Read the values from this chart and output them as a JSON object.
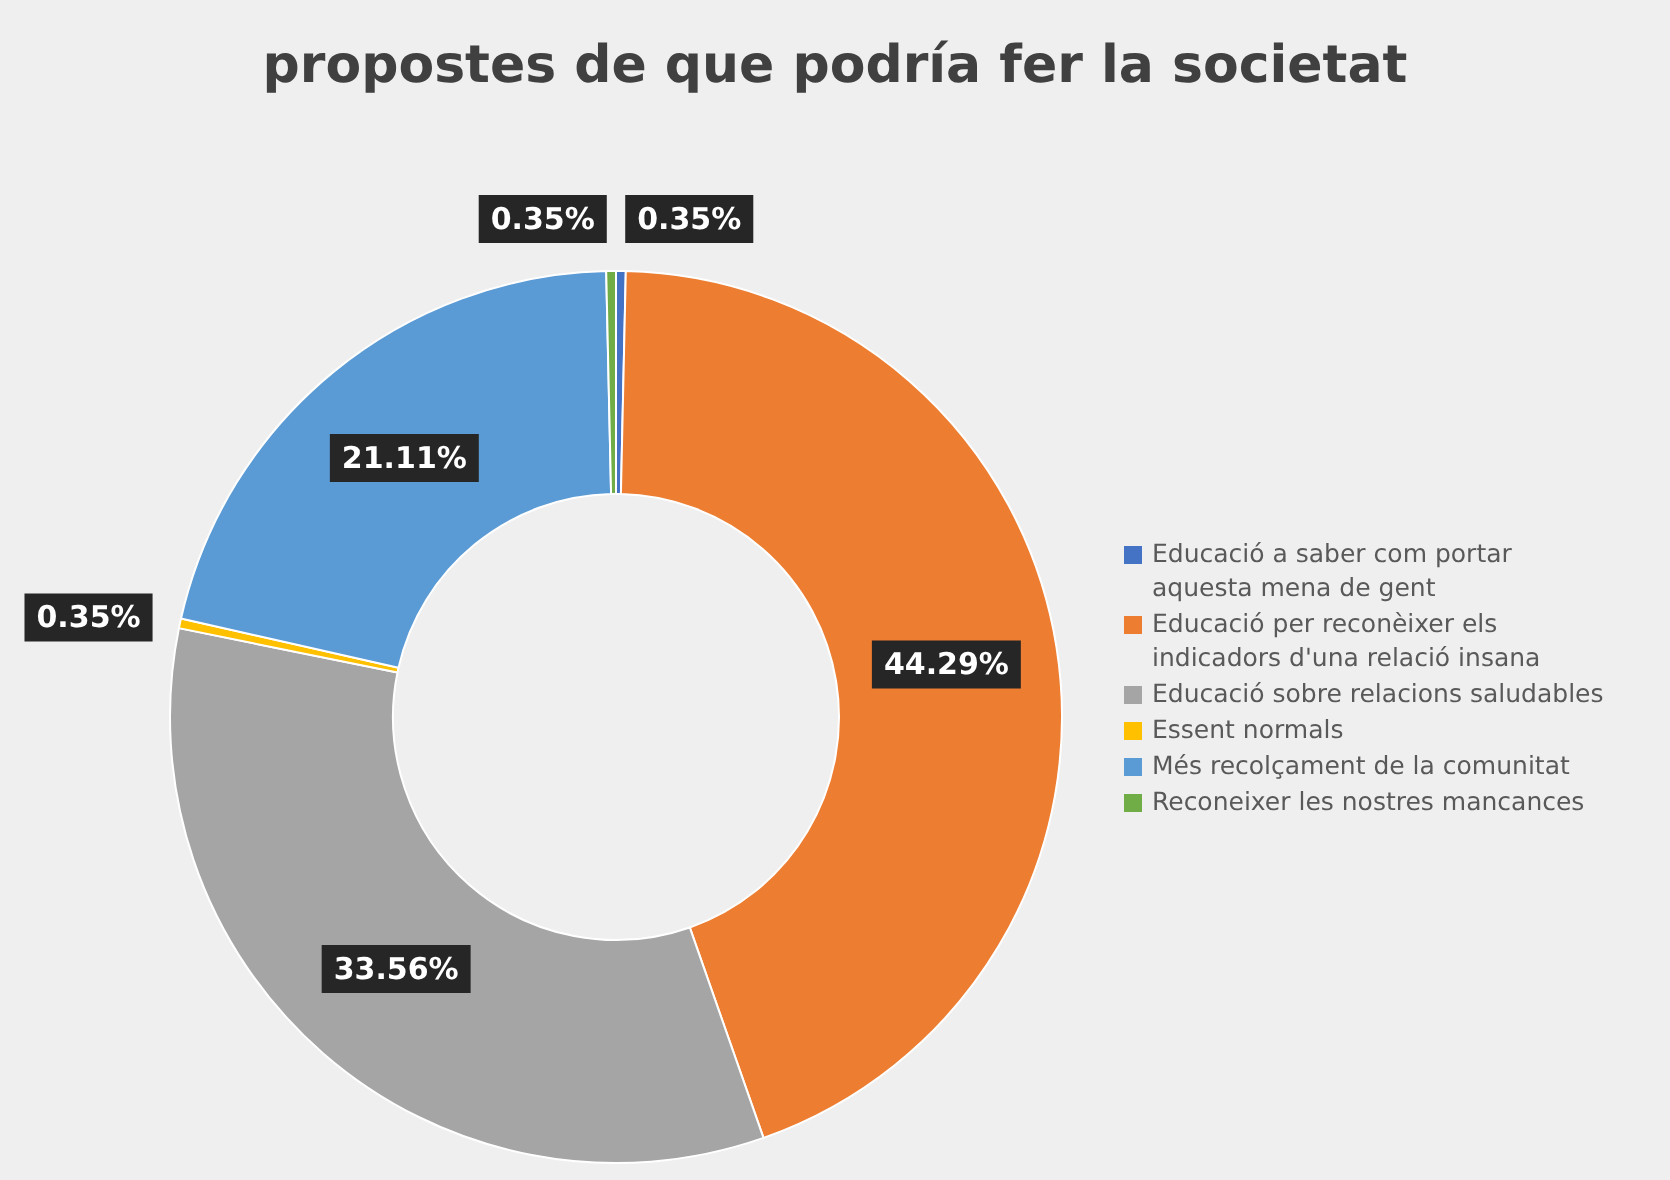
{
  "chart_data": {
    "type": "donut",
    "title": "propostes de que podría fer la societat",
    "categories": [
      "Educació a saber com portar aquesta mena de gent",
      "Educació per reconèixer els indicadors d'una relació insana",
      "Educació sobre relacions saludables",
      "Essent normals",
      "Més recolçament de la comunitat",
      "Reconeixer les nostres mancances"
    ],
    "values": [
      0.35,
      44.29,
      33.56,
      0.35,
      21.11,
      0.35
    ],
    "colors": [
      "#4472c4",
      "#ed7d31",
      "#a5a5a5",
      "#ffc000",
      "#5b9bd5",
      "#70ad47"
    ],
    "value_labels": [
      "0.35%",
      "44.29%",
      "33.56%",
      "0.35%",
      "21.11%",
      "0.35%"
    ],
    "legend": "right"
  }
}
